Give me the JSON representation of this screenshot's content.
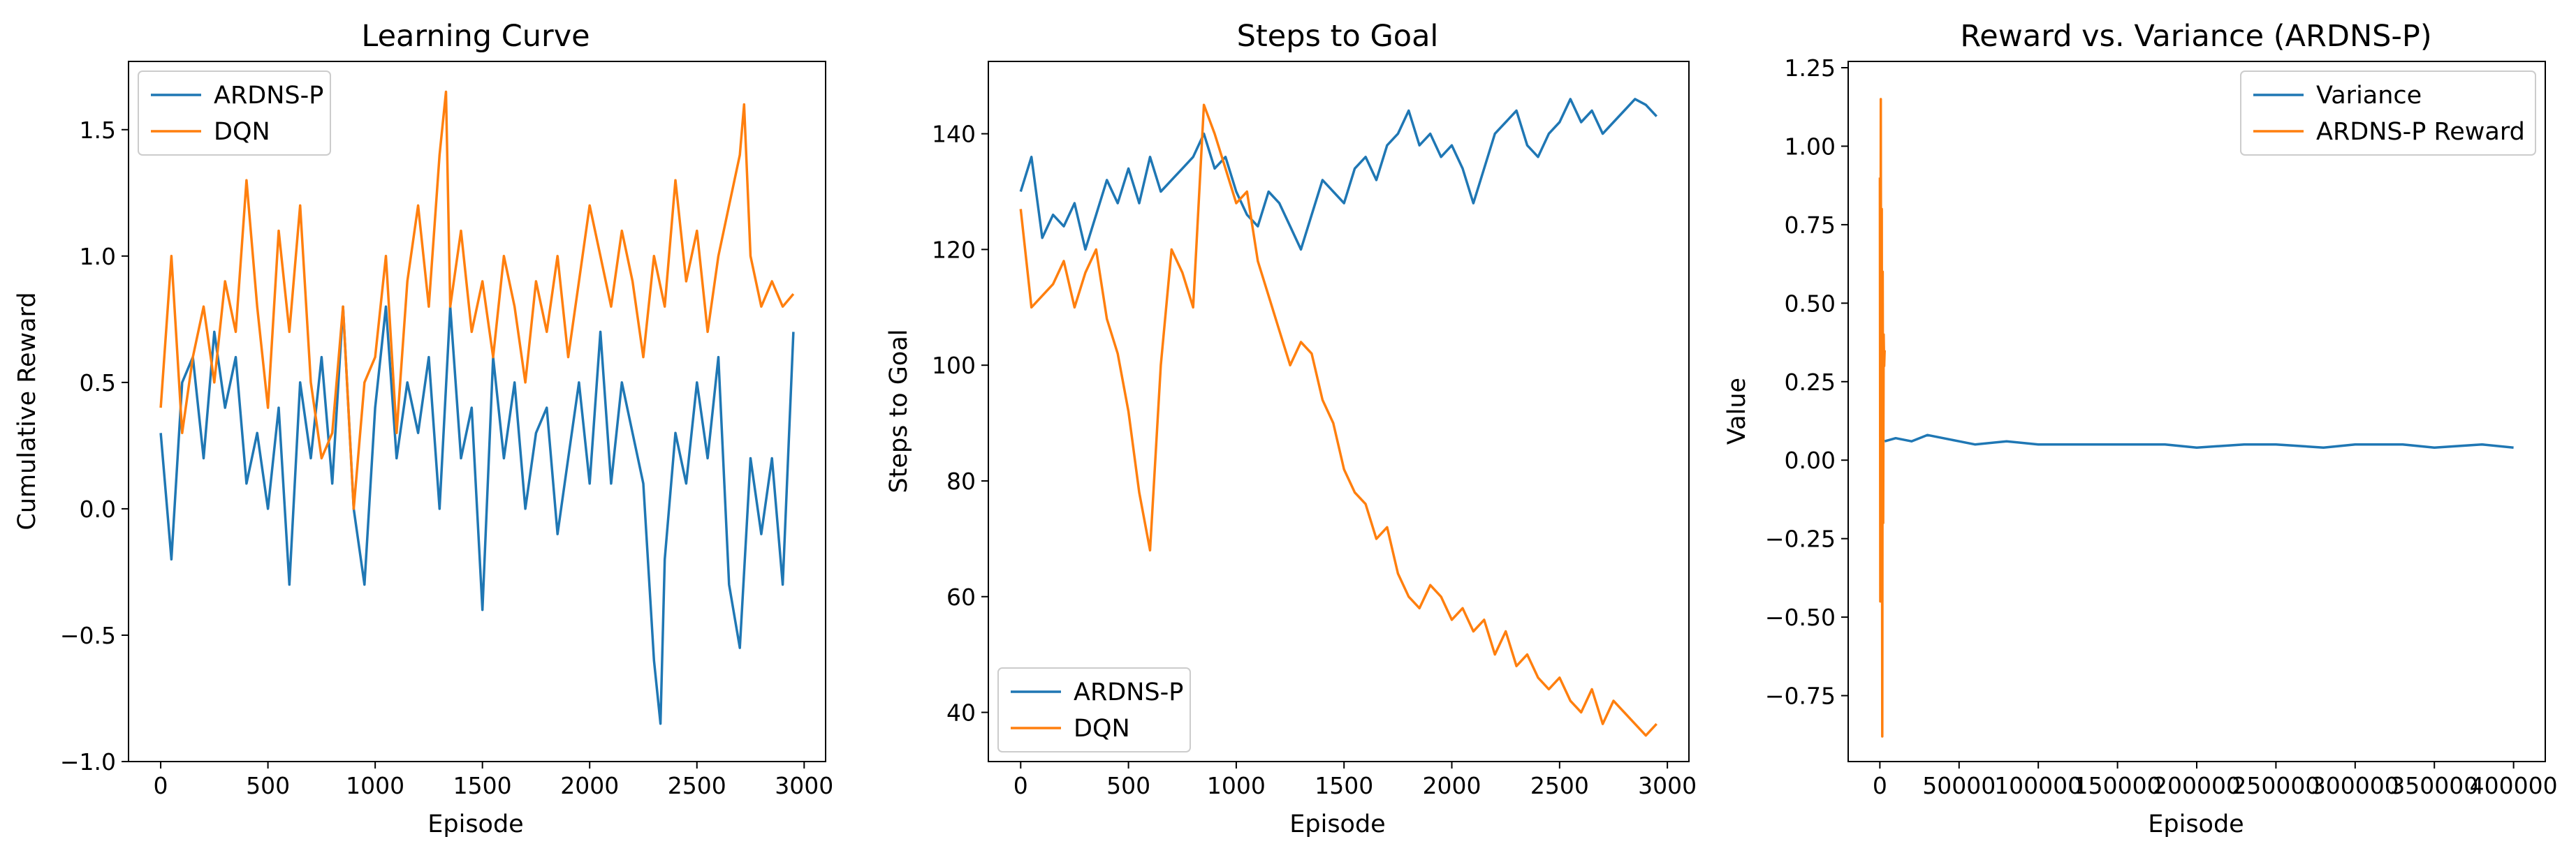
{
  "figure": {
    "colors": {
      "blue": "#1f77b4",
      "orange": "#ff7f0e",
      "frame": "#000000",
      "legend_border": "#cccccc"
    }
  },
  "chart_data": [
    {
      "type": "line",
      "title": "Learning Curve",
      "xlabel": "Episode",
      "ylabel": "Cumulative Reward",
      "xlim": [
        -150,
        3100
      ],
      "ylim": [
        -1.0,
        1.77
      ],
      "xticks": [
        0,
        500,
        1000,
        1500,
        2000,
        2500,
        3000
      ],
      "xtick_labels": [
        "0",
        "500",
        "1000",
        "1500",
        "2000",
        "2500",
        "3000"
      ],
      "yticks": [
        -1.0,
        -0.5,
        0.0,
        0.5,
        1.0,
        1.5
      ],
      "ytick_labels": [
        "−1.0",
        "−0.5",
        "0.0",
        "0.5",
        "1.0",
        "1.5"
      ],
      "legend_loc": "upper left",
      "grid": false,
      "series": [
        {
          "name": "ARDNS-P",
          "color": "#1f77b4",
          "x": [
            0,
            50,
            100,
            150,
            200,
            250,
            300,
            350,
            400,
            450,
            500,
            550,
            600,
            650,
            700,
            750,
            800,
            850,
            900,
            950,
            1000,
            1050,
            1100,
            1150,
            1200,
            1250,
            1300,
            1350,
            1400,
            1450,
            1500,
            1550,
            1600,
            1650,
            1700,
            1750,
            1800,
            1850,
            1900,
            1950,
            2000,
            2050,
            2100,
            2150,
            2200,
            2250,
            2300,
            2330,
            2350,
            2400,
            2450,
            2500,
            2550,
            2600,
            2650,
            2700,
            2750,
            2800,
            2850,
            2900,
            2950
          ],
          "y": [
            0.3,
            -0.2,
            0.5,
            0.6,
            0.2,
            0.7,
            0.4,
            0.6,
            0.1,
            0.3,
            0.0,
            0.4,
            -0.3,
            0.5,
            0.2,
            0.6,
            0.1,
            0.8,
            0.0,
            -0.3,
            0.4,
            0.8,
            0.2,
            0.5,
            0.3,
            0.6,
            0.0,
            0.8,
            0.2,
            0.4,
            -0.4,
            0.6,
            0.2,
            0.5,
            0.0,
            0.3,
            0.4,
            -0.1,
            0.2,
            0.5,
            0.1,
            0.7,
            0.1,
            0.5,
            0.3,
            0.1,
            -0.6,
            -0.85,
            -0.2,
            0.3,
            0.1,
            0.5,
            0.2,
            0.6,
            -0.3,
            -0.55,
            0.2,
            -0.1,
            0.2,
            -0.3,
            0.7
          ]
        },
        {
          "name": "DQN",
          "color": "#ff7f0e",
          "x": [
            0,
            50,
            100,
            150,
            200,
            250,
            300,
            350,
            400,
            450,
            500,
            550,
            600,
            650,
            700,
            750,
            800,
            850,
            900,
            950,
            1000,
            1050,
            1100,
            1150,
            1200,
            1250,
            1300,
            1330,
            1350,
            1400,
            1450,
            1500,
            1550,
            1600,
            1650,
            1700,
            1750,
            1800,
            1850,
            1900,
            1950,
            2000,
            2050,
            2100,
            2150,
            2200,
            2250,
            2300,
            2350,
            2400,
            2450,
            2500,
            2550,
            2600,
            2650,
            2700,
            2720,
            2750,
            2800,
            2850,
            2900,
            2950
          ],
          "y": [
            0.4,
            1.0,
            0.3,
            0.6,
            0.8,
            0.5,
            0.9,
            0.7,
            1.3,
            0.8,
            0.4,
            1.1,
            0.7,
            1.2,
            0.5,
            0.2,
            0.3,
            0.8,
            0.0,
            0.5,
            0.6,
            1.0,
            0.3,
            0.9,
            1.2,
            0.8,
            1.4,
            1.65,
            0.8,
            1.1,
            0.7,
            0.9,
            0.6,
            1.0,
            0.8,
            0.5,
            0.9,
            0.7,
            1.0,
            0.6,
            0.9,
            1.2,
            1.0,
            0.8,
            1.1,
            0.9,
            0.6,
            1.0,
            0.8,
            1.3,
            0.9,
            1.1,
            0.7,
            1.0,
            1.2,
            1.4,
            1.6,
            1.0,
            0.8,
            0.9,
            0.8,
            0.85
          ]
        }
      ]
    },
    {
      "type": "line",
      "title": "Steps to Goal",
      "xlabel": "Episode",
      "ylabel": "Steps to Goal",
      "xlim": [
        -150,
        3100
      ],
      "ylim": [
        31.5,
        152.5
      ],
      "xticks": [
        0,
        500,
        1000,
        1500,
        2000,
        2500,
        3000
      ],
      "xtick_labels": [
        "0",
        "500",
        "1000",
        "1500",
        "2000",
        "2500",
        "3000"
      ],
      "yticks": [
        40,
        60,
        80,
        100,
        120,
        140
      ],
      "ytick_labels": [
        "40",
        "60",
        "80",
        "100",
        "120",
        "140"
      ],
      "legend_loc": "lower left",
      "grid": false,
      "series": [
        {
          "name": "ARDNS-P",
          "color": "#1f77b4",
          "x": [
            0,
            50,
            100,
            150,
            200,
            250,
            300,
            350,
            400,
            450,
            500,
            550,
            600,
            650,
            700,
            750,
            800,
            850,
            900,
            950,
            1000,
            1050,
            1100,
            1150,
            1200,
            1250,
            1300,
            1350,
            1400,
            1450,
            1500,
            1550,
            1600,
            1650,
            1700,
            1750,
            1800,
            1850,
            1900,
            1950,
            2000,
            2050,
            2100,
            2150,
            2200,
            2250,
            2300,
            2350,
            2400,
            2450,
            2500,
            2550,
            2600,
            2650,
            2700,
            2750,
            2800,
            2850,
            2900,
            2950
          ],
          "y": [
            130,
            136,
            122,
            126,
            124,
            128,
            120,
            126,
            132,
            128,
            134,
            128,
            136,
            130,
            132,
            134,
            136,
            140,
            134,
            136,
            130,
            126,
            124,
            130,
            128,
            124,
            120,
            126,
            132,
            130,
            128,
            134,
            136,
            132,
            138,
            140,
            144,
            138,
            140,
            136,
            138,
            134,
            128,
            134,
            140,
            142,
            144,
            138,
            136,
            140,
            142,
            146,
            142,
            144,
            140,
            142,
            144,
            146,
            145,
            143
          ]
        },
        {
          "name": "DQN",
          "color": "#ff7f0e",
          "x": [
            0,
            50,
            100,
            150,
            200,
            250,
            300,
            350,
            400,
            450,
            500,
            550,
            600,
            650,
            700,
            750,
            800,
            850,
            900,
            950,
            1000,
            1050,
            1100,
            1150,
            1200,
            1250,
            1300,
            1350,
            1400,
            1450,
            1500,
            1550,
            1600,
            1650,
            1700,
            1750,
            1800,
            1850,
            1900,
            1950,
            2000,
            2050,
            2100,
            2150,
            2200,
            2250,
            2300,
            2350,
            2400,
            2450,
            2500,
            2550,
            2600,
            2650,
            2700,
            2750,
            2800,
            2850,
            2900,
            2950
          ],
          "y": [
            127,
            110,
            112,
            114,
            118,
            110,
            116,
            120,
            108,
            102,
            92,
            78,
            68,
            100,
            120,
            116,
            110,
            145,
            140,
            134,
            128,
            130,
            118,
            112,
            106,
            100,
            104,
            102,
            94,
            90,
            82,
            78,
            76,
            70,
            72,
            64,
            60,
            58,
            62,
            60,
            56,
            58,
            54,
            56,
            50,
            54,
            48,
            50,
            46,
            44,
            46,
            42,
            40,
            44,
            38,
            42,
            40,
            38,
            36,
            38
          ]
        }
      ]
    },
    {
      "type": "line",
      "title": "Reward vs. Variance (ARDNS-P)",
      "xlabel": "Episode",
      "ylabel": "Value",
      "xlim": [
        -20000,
        420000
      ],
      "ylim": [
        -0.96,
        1.27
      ],
      "xticks": [
        0,
        50000,
        100000,
        150000,
        200000,
        250000,
        300000,
        350000,
        400000
      ],
      "xtick_labels": [
        "0",
        "50000",
        "100000",
        "150000",
        "200000",
        "250000",
        "300000",
        "350000",
        "400000"
      ],
      "yticks": [
        -0.75,
        -0.5,
        -0.25,
        0.0,
        0.25,
        0.5,
        0.75,
        1.0,
        1.25
      ],
      "ytick_labels": [
        "−0.75",
        "−0.50",
        "−0.25",
        "0.00",
        "0.25",
        "0.50",
        "0.75",
        "1.00",
        "1.25"
      ],
      "legend_loc": "upper right",
      "grid": false,
      "series": [
        {
          "name": "Variance",
          "color": "#1f77b4",
          "x": [
            3000,
            10000,
            20000,
            30000,
            40000,
            50000,
            60000,
            80000,
            100000,
            120000,
            150000,
            180000,
            200000,
            230000,
            250000,
            280000,
            300000,
            330000,
            350000,
            380000,
            400000
          ],
          "y": [
            0.06,
            0.07,
            0.06,
            0.08,
            0.07,
            0.06,
            0.05,
            0.06,
            0.05,
            0.05,
            0.05,
            0.05,
            0.04,
            0.05,
            0.05,
            0.04,
            0.05,
            0.05,
            0.04,
            0.05,
            0.04
          ]
        },
        {
          "name": "ARDNS-P Reward",
          "color": "#ff7f0e",
          "x": [
            0,
            300,
            600,
            900,
            1200,
            1500,
            1800,
            2100,
            2400,
            2700,
            3000
          ],
          "y": [
            0.9,
            -0.45,
            1.15,
            -0.4,
            0.8,
            -0.88,
            0.6,
            -0.2,
            0.4,
            0.3,
            0.35
          ]
        }
      ]
    }
  ]
}
